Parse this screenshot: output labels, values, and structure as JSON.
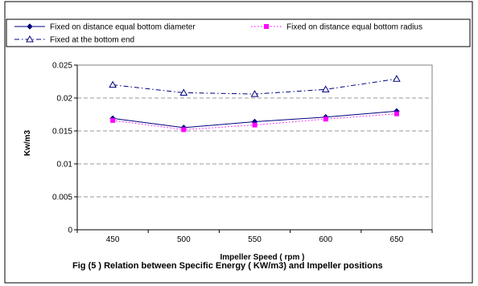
{
  "chart_data": {
    "type": "line",
    "x": [
      450,
      500,
      550,
      600,
      650
    ],
    "xticks": [
      "450",
      "500",
      "550",
      "600",
      "650"
    ],
    "xlabel": "Impeller Speed ( rpm )",
    "ylabel": "Kw/m3",
    "ylim": [
      0,
      0.025
    ],
    "yticks": [
      "0",
      "0.005",
      "0.01",
      "0.015",
      "0.02",
      "0.025"
    ],
    "grid": "horizontal dashed",
    "legend_position": "top",
    "series": [
      {
        "name": "Fixed on distance equal bottom diameter",
        "values": [
          0.0169,
          0.0155,
          0.0164,
          0.0171,
          0.018
        ],
        "color": "#000080",
        "marker": "diamond",
        "line": "solid"
      },
      {
        "name": "Fixed on distance equal bottom radius",
        "values": [
          0.0166,
          0.0152,
          0.0159,
          0.0168,
          0.0176
        ],
        "color": "#ff00ff",
        "marker": "square",
        "line": "dotted"
      },
      {
        "name": "Fixed at the bottom end",
        "values": [
          0.022,
          0.0208,
          0.0206,
          0.0213,
          0.0229
        ],
        "color": "#000080",
        "marker": "triangle",
        "line": "dash-dot"
      }
    ]
  },
  "caption": "Fig (5 ) Relation between Specific  Energy ( KW/m3) and Impeller positions"
}
